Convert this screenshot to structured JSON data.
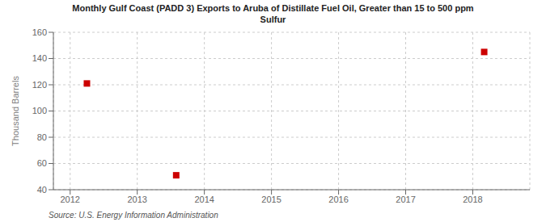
{
  "chart_data": {
    "type": "scatter",
    "title": "Monthly Gulf Coast (PADD 3) Exports to Aruba of Distillate Fuel Oil, Greater than 15 to 500 ppm\nSulfur",
    "y_label": "Thousand Barrels",
    "annotations": [
      "Source: U.S. Energy Information Administration"
    ],
    "x": [
      2012.25,
      2013.58,
      2018.17
    ],
    "values": [
      121,
      51,
      145
    ],
    "color": "#cc0000",
    "marker": "square",
    "xlim": [
      2011.75,
      2018.85
    ],
    "ylim": [
      40,
      160
    ],
    "xticks": [
      2012,
      2013,
      2014,
      2015,
      2016,
      2017,
      2018
    ],
    "yticks": [
      40,
      60,
      80,
      100,
      120,
      140,
      160
    ],
    "grid": true
  }
}
